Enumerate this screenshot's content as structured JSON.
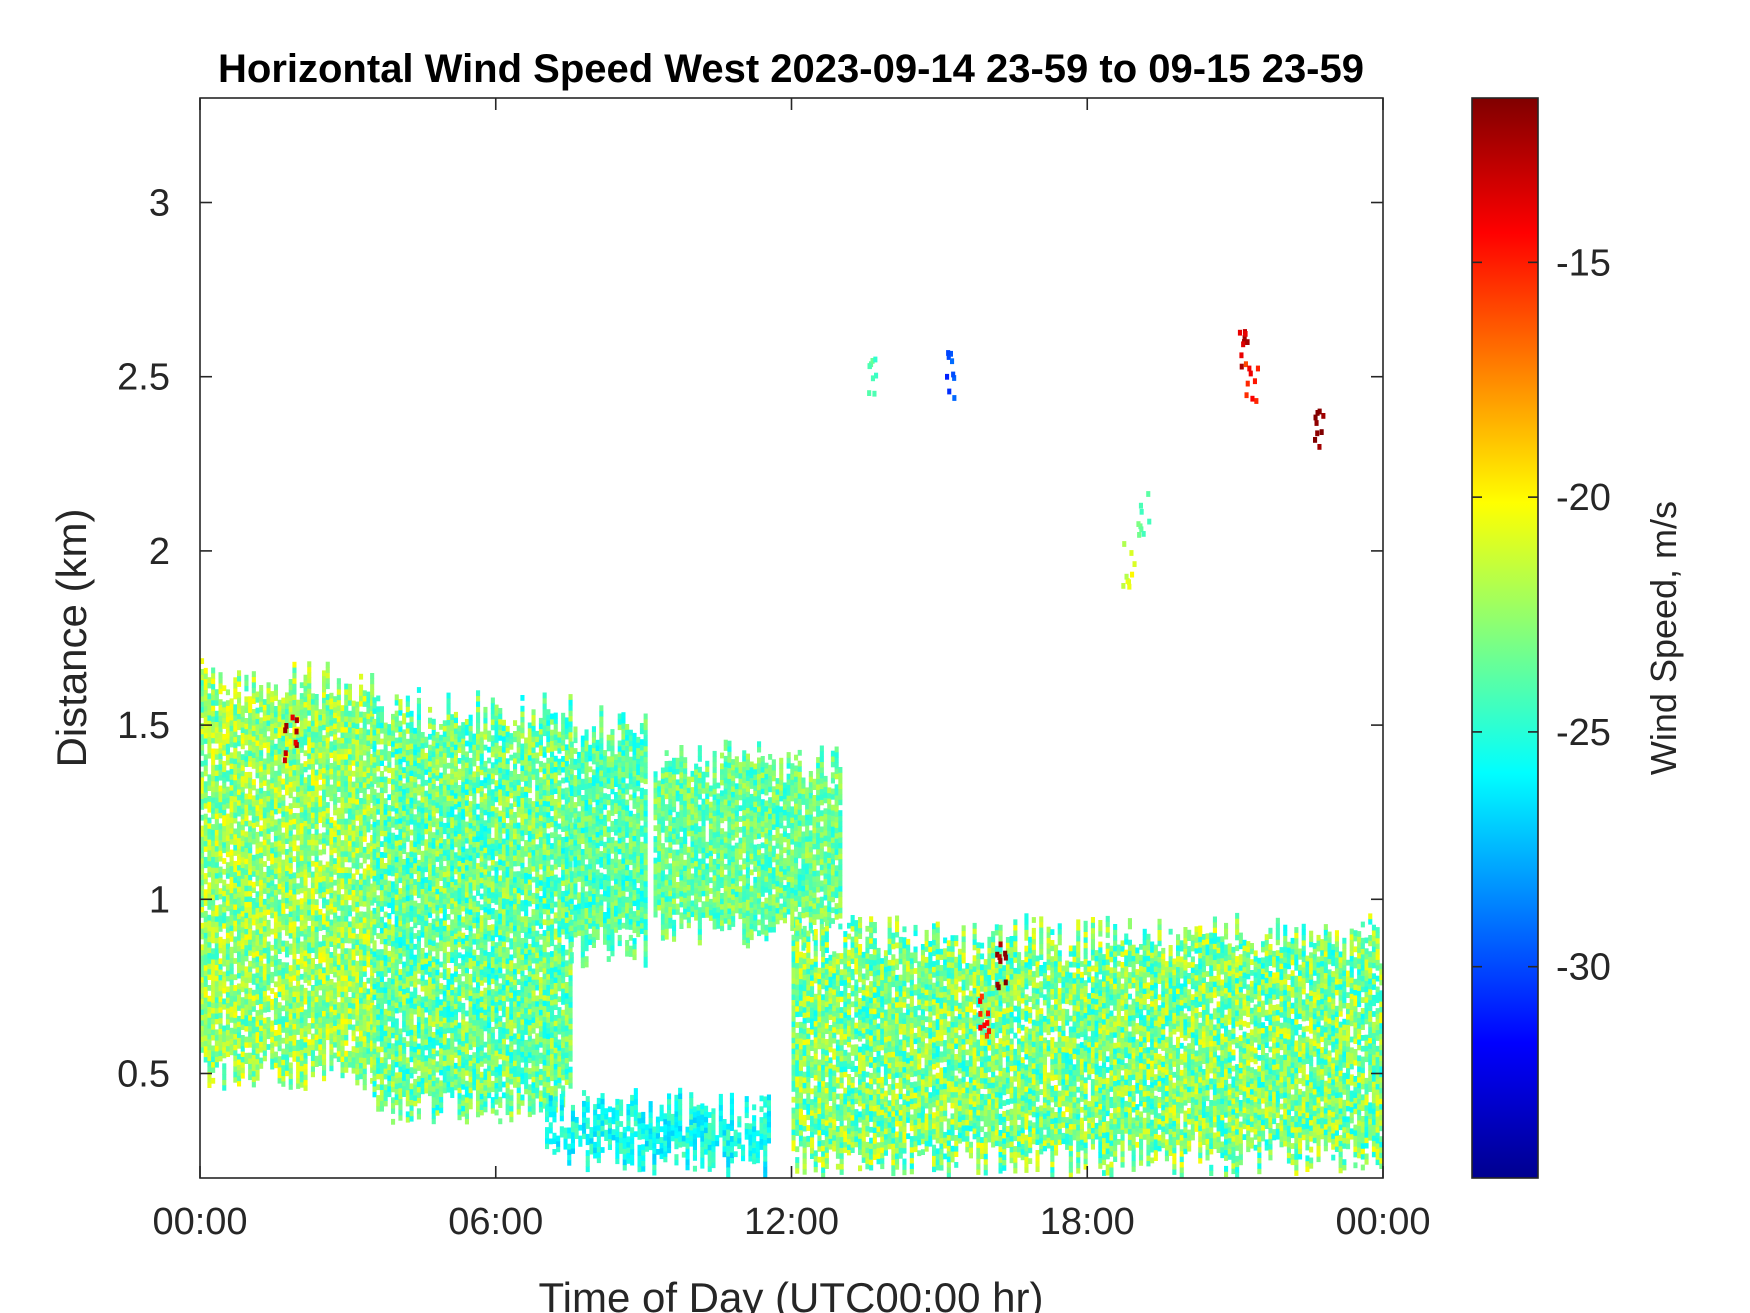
{
  "chart_data": {
    "type": "heatmap",
    "title": "Horizontal Wind Speed West 2023-09-14 23-59 to 09-15 23-59",
    "xlabel": "Time of Day (UTC00:00 hr)",
    "ylabel": "Distance (km)",
    "xlim_hours": [
      0,
      24
    ],
    "ylim": [
      0.2,
      3.3
    ],
    "x_ticks": [
      {
        "value": 0,
        "label": "00:00"
      },
      {
        "value": 6,
        "label": "06:00"
      },
      {
        "value": 12,
        "label": "12:00"
      },
      {
        "value": 18,
        "label": "18:00"
      },
      {
        "value": 24,
        "label": "00:00"
      }
    ],
    "y_ticks": [
      {
        "value": 0.5,
        "label": "0.5"
      },
      {
        "value": 1,
        "label": "1"
      },
      {
        "value": 1.5,
        "label": "1.5"
      },
      {
        "value": 2,
        "label": "2"
      },
      {
        "value": 2.5,
        "label": "2.5"
      },
      {
        "value": 3,
        "label": "3"
      }
    ],
    "colorbar": {
      "label": "Wind Speed, m/s",
      "range": [
        -34.5,
        -11.5
      ],
      "colormap": "jet",
      "ticks": [
        {
          "value": -15,
          "label": "-15"
        },
        {
          "value": -20,
          "label": "-20"
        },
        {
          "value": -25,
          "label": "-25"
        },
        {
          "value": -30,
          "label": "-30"
        }
      ]
    },
    "regions": [
      {
        "x0": 0.0,
        "x1": 3.5,
        "y0": 0.45,
        "y1": 1.68,
        "mean": -22.5,
        "spread": 2.5
      },
      {
        "x0": 3.5,
        "x1": 7.5,
        "y0": 0.35,
        "y1": 1.6,
        "mean": -23.5,
        "spread": 2.5
      },
      {
        "x0": 7.5,
        "x1": 9.0,
        "y0": 0.8,
        "y1": 1.55,
        "mean": -24.0,
        "spread": 2.0
      },
      {
        "x0": 9.2,
        "x1": 13.0,
        "y0": 0.85,
        "y1": 1.45,
        "mean": -23.5,
        "spread": 2.0
      },
      {
        "x0": 12.0,
        "x1": 24.0,
        "y0": 0.2,
        "y1": 0.95,
        "mean": -23.0,
        "spread": 2.8
      },
      {
        "x0": 7.0,
        "x1": 11.5,
        "y0": 0.2,
        "y1": 0.45,
        "mean": -25.5,
        "spread": 1.5
      }
    ],
    "features": [
      {
        "x": 1.8,
        "y": 1.45,
        "value": -13
      },
      {
        "x": 15.9,
        "y": 0.65,
        "value": -15
      },
      {
        "x": 16.2,
        "y": 0.8,
        "value": -12
      },
      {
        "x": 13.65,
        "y": 2.5,
        "value": -24
      },
      {
        "x": 15.2,
        "y": 2.5,
        "value": -30
      },
      {
        "x": 21.1,
        "y": 2.58,
        "value": -13
      },
      {
        "x": 21.3,
        "y": 2.48,
        "value": -15
      },
      {
        "x": 22.7,
        "y": 2.35,
        "value": -12
      },
      {
        "x": 19.1,
        "y": 2.1,
        "value": -24
      },
      {
        "x": 18.8,
        "y": 1.95,
        "value": -21
      }
    ]
  }
}
